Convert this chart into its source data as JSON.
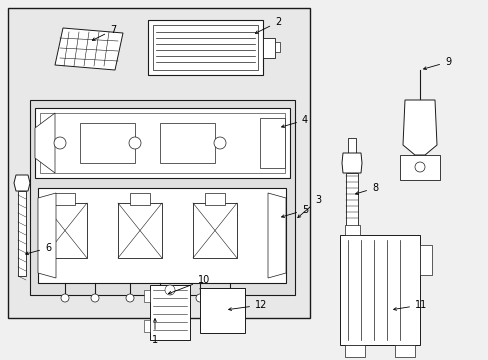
{
  "bg_color": "#f0f0f0",
  "outer_bg": "#e8e8e8",
  "inner_bg": "#e0e0e0",
  "line_color": "#1a1a1a",
  "lw_outer": 1.0,
  "lw_inner": 0.8,
  "lw_part": 0.7,
  "label_fs": 7,
  "label_color": "#000000"
}
